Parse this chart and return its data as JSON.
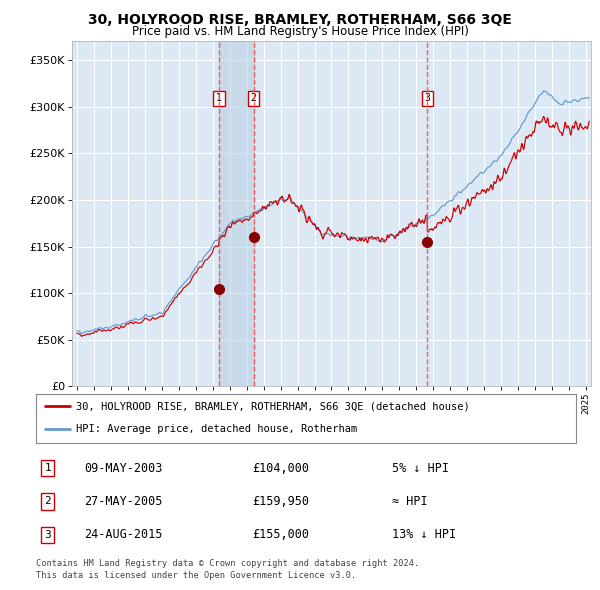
{
  "title": "30, HOLYROOD RISE, BRAMLEY, ROTHERHAM, S66 3QE",
  "subtitle": "Price paid vs. HM Land Registry's House Price Index (HPI)",
  "red_label": "30, HOLYROOD RISE, BRAMLEY, ROTHERHAM, S66 3QE (detached house)",
  "blue_label": "HPI: Average price, detached house, Rotherham",
  "transactions": [
    {
      "num": 1,
      "date": "09-MAY-2003",
      "price": 104000,
      "rel": "5% ↓ HPI",
      "x_year": 2003.36
    },
    {
      "num": 2,
      "date": "27-MAY-2005",
      "price": 159950,
      "rel": "≈ HPI",
      "x_year": 2005.41
    },
    {
      "num": 3,
      "date": "24-AUG-2015",
      "price": 155000,
      "rel": "13% ↓ HPI",
      "x_year": 2015.65
    }
  ],
  "footer1": "Contains HM Land Registry data © Crown copyright and database right 2024.",
  "footer2": "This data is licensed under the Open Government Licence v3.0.",
  "fig_bg": "#ffffff",
  "plot_bg": "#dce9f5",
  "grid_color": "#ffffff",
  "red_line_color": "#cc0000",
  "blue_line_color": "#6699cc",
  "dot_color": "#880000",
  "dashed_color": "#ff4444",
  "ylim": [
    0,
    370000
  ],
  "yticks": [
    0,
    50000,
    100000,
    150000,
    200000,
    250000,
    300000,
    350000
  ],
  "xmin": 1994.7,
  "xmax": 2025.3
}
